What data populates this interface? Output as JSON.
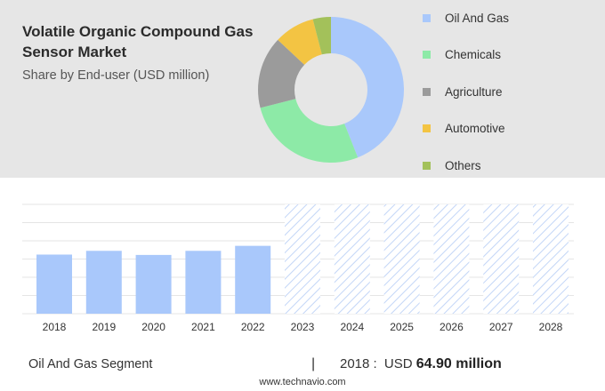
{
  "title": "Volatile Organic Compound Gas Sensor Market",
  "subtitle": "Share by End-user (USD million)",
  "legend": [
    {
      "label": "Oil And Gas",
      "color": "#a9c8fb"
    },
    {
      "label": "Chemicals",
      "color": "#8deaa7"
    },
    {
      "label": "Agriculture",
      "color": "#9b9b9b"
    },
    {
      "label": "Automotive",
      "color": "#f3c443"
    },
    {
      "label": "Others",
      "color": "#a3c15a"
    }
  ],
  "chart_data": [
    {
      "type": "pie",
      "donut": true,
      "title": "Share by End-user (USD million)",
      "labels": [
        "Oil And Gas",
        "Chemicals",
        "Agriculture",
        "Automotive",
        "Others"
      ],
      "values": [
        44,
        27,
        16,
        9,
        4
      ],
      "colors": [
        "#a9c8fb",
        "#8deaa7",
        "#9b9b9b",
        "#f3c443",
        "#a3c15a"
      ]
    },
    {
      "type": "bar",
      "categories": [
        "2018",
        "2019",
        "2020",
        "2021",
        "2022",
        "2023",
        "2024",
        "2025",
        "2026",
        "2027",
        "2028"
      ],
      "values": [
        64.9,
        69.0,
        64.5,
        69.0,
        74.5,
        null,
        null,
        null,
        null,
        null,
        null
      ],
      "forecast_categories": [
        "2023",
        "2024",
        "2025",
        "2026",
        "2027",
        "2028"
      ],
      "ylim": [
        0,
        120
      ],
      "grid": true,
      "bar_color": "#a9c8fb"
    }
  ],
  "footer": {
    "segment": "Oil And Gas Segment",
    "separator": "|",
    "year": "2018 :",
    "currency": "USD",
    "value": "64.90 million"
  },
  "credit": "www.technavio.com"
}
